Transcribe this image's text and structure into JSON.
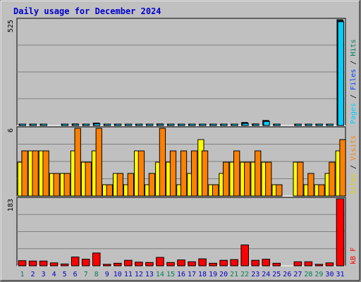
{
  "chart_data": {
    "type": "bar",
    "title": "Daily usage for December 2024",
    "categories": [
      "1",
      "2",
      "3",
      "4",
      "5",
      "6",
      "7",
      "8",
      "9",
      "10",
      "11",
      "12",
      "13",
      "14",
      "15",
      "16",
      "17",
      "18",
      "19",
      "20",
      "21",
      "22",
      "23",
      "24",
      "25",
      "26",
      "27",
      "28",
      "29",
      "30",
      "31"
    ],
    "weekend_days": [
      "1",
      "7",
      "8",
      "14",
      "15",
      "21",
      "22",
      "28",
      "29"
    ],
    "panels": [
      {
        "name": "hits",
        "ymax": 525,
        "ymax_label": "525",
        "legend": [
          "Pages",
          "/",
          "Files",
          "/",
          "Hits"
        ],
        "series": [
          {
            "name": "Hits",
            "color": "#00805c",
            "values": [
              6,
              5,
              6,
              0,
              5,
              8,
              6,
              12,
              5,
              5,
              5,
              6,
              5,
              8,
              6,
              5,
              5,
              6,
              5,
              5,
              6,
              15,
              8,
              25,
              5,
              0,
              5,
              5,
              5,
              6,
              525
            ]
          },
          {
            "name": "Files",
            "color": "#0040ff",
            "values": [
              5,
              4,
              5,
              0,
              4,
              7,
              5,
              10,
              4,
              4,
              4,
              5,
              4,
              7,
              5,
              4,
              4,
              5,
              4,
              4,
              5,
              12,
              7,
              22,
              4,
              0,
              4,
              4,
              4,
              5,
              520
            ]
          },
          {
            "name": "Pages",
            "color": "#00d0ff",
            "values": [
              4,
              3,
              4,
              0,
              3,
              6,
              4,
              9,
              3,
              3,
              3,
              4,
              3,
              6,
              4,
              3,
              3,
              4,
              3,
              3,
              4,
              10,
              6,
              20,
              3,
              0,
              3,
              3,
              3,
              4,
              515
            ]
          }
        ]
      },
      {
        "name": "visits",
        "ymax": 6,
        "ymax_label": "6",
        "legend": [
          "Sites",
          "/",
          "Visits"
        ],
        "series": [
          {
            "name": "Sites",
            "color": "#ffff00",
            "values": [
              3,
              4,
              4,
              2,
              2,
              4,
              3,
              4,
              1,
              2,
              1,
              4,
              1,
              3,
              3,
              1,
              2,
              5,
              1,
              2,
              3,
              3,
              3,
              3,
              1,
              0,
              3,
              1,
              1,
              2,
              4
            ]
          },
          {
            "name": "Visits",
            "color": "#ff8000",
            "values": [
              4,
              4,
              4,
              2,
              2,
              6,
              3,
              6,
              1,
              2,
              2,
              4,
              2,
              6,
              4,
              4,
              4,
              4,
              1,
              3,
              4,
              3,
              4,
              3,
              1,
              0,
              3,
              2,
              1,
              3,
              5
            ]
          }
        ]
      },
      {
        "name": "kbytes",
        "ymax": 183,
        "ymax_label": "183",
        "legend": [
          "kB",
          "F"
        ],
        "series": [
          {
            "name": "kB F",
            "color": "#ff0000",
            "values": [
              14,
              13,
              13,
              8,
              5,
              24,
              18,
              35,
              4,
              7,
              15,
              10,
              9,
              23,
              9,
              16,
              11,
              19,
              7,
              15,
              17,
              57,
              15,
              18,
              7,
              0,
              11,
              11,
              4,
              8,
              183
            ]
          }
        ]
      }
    ],
    "colors": {
      "background": "#c0c0c0",
      "plot": "#c0c0c0",
      "title": "#0000cc",
      "weekday": "#0000cc",
      "weekend": "#00805c"
    }
  }
}
